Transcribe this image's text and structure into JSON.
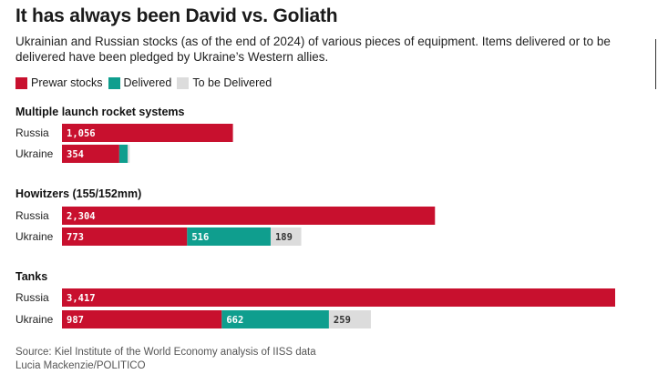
{
  "title": "It has always been David vs. Goliath",
  "subtitle": "Ukrainian and Russian stocks (as of the end of 2024) of various pieces of equipment. Items delivered or to be delivered have been pledged by Ukraine’s Western allies.",
  "legend": [
    {
      "label": "Prewar stocks",
      "color": "#c8102e"
    },
    {
      "label": "Delivered",
      "color": "#0f9e8e"
    },
    {
      "label": "To be Delivered",
      "color": "#dcdcdc"
    }
  ],
  "colors": {
    "prewar": "#c8102e",
    "delivered": "#0f9e8e",
    "to_be_delivered": "#dcdcdc",
    "label_on_dark": "#ffffff",
    "label_on_light": "#333333"
  },
  "chart_data": {
    "type": "bar",
    "orientation": "horizontal",
    "stacked": true,
    "series_names": [
      "Prewar stocks",
      "Delivered",
      "To be Delivered"
    ],
    "groups": [
      {
        "title": "Multiple launch rocket systems",
        "rows": [
          {
            "label": "Russia",
            "values": [
              1056,
              0,
              0
            ],
            "labels": [
              "1,056",
              "",
              ""
            ]
          },
          {
            "label": "Ukraine",
            "values": [
              354,
              52,
              12
            ],
            "labels": [
              "354",
              "",
              ""
            ]
          }
        ]
      },
      {
        "title": "Howitzers (155/152mm)",
        "rows": [
          {
            "label": "Russia",
            "values": [
              2304,
              0,
              0
            ],
            "labels": [
              "2,304",
              "",
              ""
            ]
          },
          {
            "label": "Ukraine",
            "values": [
              773,
              516,
              189
            ],
            "labels": [
              "773",
              "516",
              "189"
            ]
          }
        ]
      },
      {
        "title": "Tanks",
        "rows": [
          {
            "label": "Russia",
            "values": [
              3417,
              0,
              0
            ],
            "labels": [
              "3,417",
              "",
              ""
            ]
          },
          {
            "label": "Ukraine",
            "values": [
              987,
              662,
              259
            ],
            "labels": [
              "987",
              "662",
              "259"
            ]
          }
        ]
      }
    ],
    "xlim": [
      0,
      3417
    ]
  },
  "footer": {
    "source": "Source: Kiel Institute of the World Economy analysis of IISS data",
    "credit": "Lucia Mackenzie/POLITICO"
  }
}
